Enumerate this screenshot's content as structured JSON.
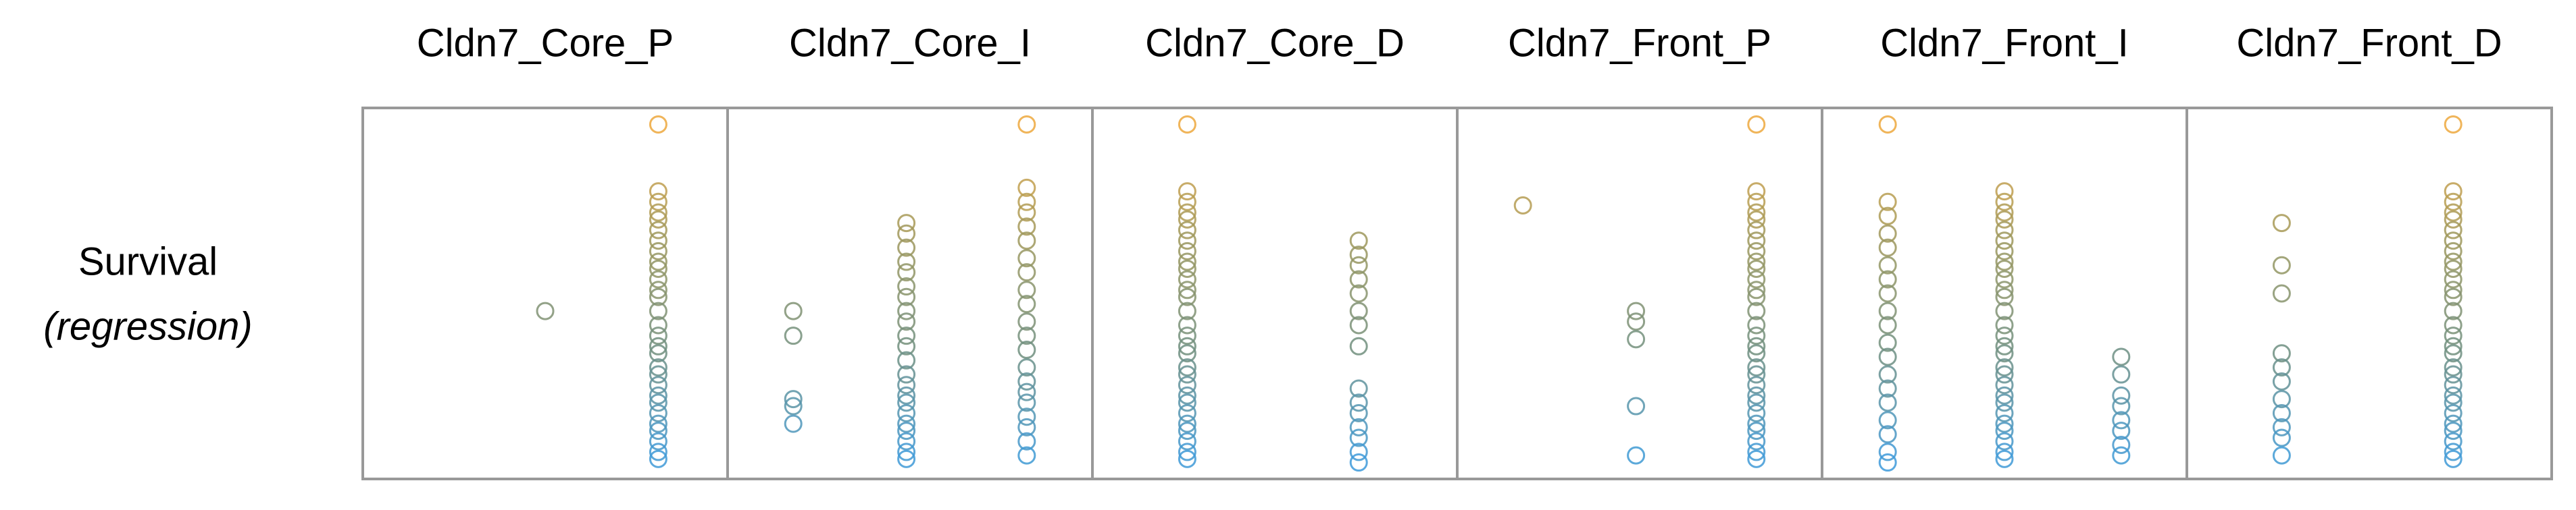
{
  "row_label": {
    "text": "Survival",
    "subtext": "(regression)"
  },
  "colormap": [
    "#3a9be0",
    "#6f8f80",
    "#a0985a",
    "#f2a93b"
  ],
  "chart_data": [
    {
      "type": "scatter",
      "title": "Cldn7_Core_P",
      "xlim": [
        0,
        1
      ],
      "ylim": [
        0,
        1
      ],
      "x": [
        0.5,
        0.81,
        0.81,
        0.81,
        0.81,
        0.81,
        0.81,
        0.81,
        0.81,
        0.81,
        0.81,
        0.81,
        0.81,
        0.81,
        0.81,
        0.81,
        0.81,
        0.81,
        0.81,
        0.81,
        0.81,
        0.81,
        0.81,
        0.81,
        0.81,
        0.81,
        0.81,
        0.81,
        0.81,
        0.81
      ],
      "y": [
        0.45,
        0.98,
        0.79,
        0.76,
        0.73,
        0.71,
        0.68,
        0.65,
        0.62,
        0.59,
        0.57,
        0.54,
        0.51,
        0.49,
        0.45,
        0.41,
        0.38,
        0.35,
        0.33,
        0.29,
        0.27,
        0.24,
        0.21,
        0.19,
        0.16,
        0.13,
        0.11,
        0.08,
        0.05,
        0.03
      ]
    },
    {
      "type": "scatter",
      "title": "Cldn7_Core_I",
      "xlim": [
        0,
        1
      ],
      "ylim": [
        0,
        1
      ],
      "x": [
        0.18,
        0.18,
        0.18,
        0.18,
        0.18,
        0.49,
        0.49,
        0.49,
        0.49,
        0.49,
        0.49,
        0.49,
        0.49,
        0.49,
        0.49,
        0.49,
        0.49,
        0.49,
        0.49,
        0.49,
        0.49,
        0.49,
        0.49,
        0.49,
        0.49,
        0.49,
        0.49,
        0.82,
        0.82,
        0.82,
        0.82,
        0.82,
        0.82,
        0.82,
        0.82,
        0.82,
        0.82,
        0.82,
        0.82,
        0.82,
        0.82,
        0.82,
        0.82,
        0.82,
        0.82,
        0.82,
        0.82,
        0.82
      ],
      "y": [
        0.45,
        0.38,
        0.2,
        0.18,
        0.13,
        0.7,
        0.67,
        0.63,
        0.59,
        0.56,
        0.52,
        0.49,
        0.45,
        0.42,
        0.38,
        0.35,
        0.31,
        0.27,
        0.24,
        0.21,
        0.19,
        0.16,
        0.13,
        0.11,
        0.08,
        0.05,
        0.03,
        0.98,
        0.8,
        0.76,
        0.73,
        0.69,
        0.65,
        0.6,
        0.56,
        0.51,
        0.47,
        0.42,
        0.38,
        0.34,
        0.29,
        0.25,
        0.22,
        0.19,
        0.15,
        0.12,
        0.08,
        0.04
      ]
    },
    {
      "type": "scatter",
      "title": "Cldn7_Core_D",
      "xlim": [
        0,
        1
      ],
      "ylim": [
        0,
        1
      ],
      "x": [
        0.26,
        0.26,
        0.26,
        0.26,
        0.26,
        0.26,
        0.26,
        0.26,
        0.26,
        0.26,
        0.26,
        0.26,
        0.26,
        0.26,
        0.26,
        0.26,
        0.26,
        0.26,
        0.26,
        0.26,
        0.26,
        0.26,
        0.26,
        0.26,
        0.26,
        0.26,
        0.26,
        0.26,
        0.26,
        0.73,
        0.73,
        0.73,
        0.73,
        0.73,
        0.73,
        0.73,
        0.73,
        0.73,
        0.73,
        0.73,
        0.73,
        0.73,
        0.73,
        0.73
      ],
      "y": [
        0.98,
        0.79,
        0.76,
        0.73,
        0.71,
        0.68,
        0.65,
        0.62,
        0.59,
        0.57,
        0.54,
        0.51,
        0.49,
        0.45,
        0.41,
        0.38,
        0.35,
        0.33,
        0.29,
        0.27,
        0.24,
        0.21,
        0.19,
        0.16,
        0.13,
        0.11,
        0.08,
        0.05,
        0.03,
        0.65,
        0.61,
        0.58,
        0.54,
        0.5,
        0.45,
        0.41,
        0.35,
        0.23,
        0.19,
        0.16,
        0.12,
        0.09,
        0.05,
        0.02
      ]
    },
    {
      "type": "scatter",
      "title": "Cldn7_Front_P",
      "xlim": [
        0,
        1
      ],
      "ylim": [
        0,
        1
      ],
      "x": [
        0.18,
        0.49,
        0.49,
        0.49,
        0.49,
        0.49,
        0.82,
        0.82,
        0.82,
        0.82,
        0.82,
        0.82,
        0.82,
        0.82,
        0.82,
        0.82,
        0.82,
        0.82,
        0.82,
        0.82,
        0.82,
        0.82,
        0.82,
        0.82,
        0.82,
        0.82,
        0.82,
        0.82,
        0.82,
        0.82,
        0.82,
        0.82,
        0.82,
        0.82,
        0.82
      ],
      "y": [
        0.75,
        0.45,
        0.42,
        0.37,
        0.18,
        0.04,
        0.98,
        0.79,
        0.76,
        0.73,
        0.71,
        0.68,
        0.65,
        0.62,
        0.59,
        0.57,
        0.54,
        0.51,
        0.49,
        0.45,
        0.41,
        0.38,
        0.35,
        0.33,
        0.29,
        0.27,
        0.24,
        0.21,
        0.19,
        0.16,
        0.13,
        0.11,
        0.08,
        0.05,
        0.03
      ]
    },
    {
      "type": "scatter",
      "title": "Cldn7_Front_I",
      "xlim": [
        0,
        1
      ],
      "ylim": [
        0,
        1
      ],
      "x": [
        0.18,
        0.18,
        0.18,
        0.18,
        0.18,
        0.18,
        0.18,
        0.18,
        0.18,
        0.18,
        0.18,
        0.18,
        0.18,
        0.18,
        0.18,
        0.18,
        0.18,
        0.18,
        0.18,
        0.5,
        0.5,
        0.5,
        0.5,
        0.5,
        0.5,
        0.5,
        0.5,
        0.5,
        0.5,
        0.5,
        0.5,
        0.5,
        0.5,
        0.5,
        0.5,
        0.5,
        0.5,
        0.5,
        0.5,
        0.5,
        0.5,
        0.5,
        0.5,
        0.5,
        0.5,
        0.5,
        0.5,
        0.82,
        0.82,
        0.82,
        0.82,
        0.82,
        0.82,
        0.82,
        0.82
      ],
      "y": [
        0.98,
        0.76,
        0.72,
        0.67,
        0.63,
        0.58,
        0.54,
        0.5,
        0.45,
        0.41,
        0.36,
        0.32,
        0.27,
        0.23,
        0.19,
        0.14,
        0.1,
        0.05,
        0.02,
        0.79,
        0.76,
        0.73,
        0.71,
        0.68,
        0.65,
        0.62,
        0.59,
        0.57,
        0.54,
        0.51,
        0.49,
        0.45,
        0.41,
        0.38,
        0.35,
        0.33,
        0.29,
        0.27,
        0.24,
        0.21,
        0.19,
        0.16,
        0.13,
        0.11,
        0.08,
        0.05,
        0.03,
        0.32,
        0.27,
        0.21,
        0.18,
        0.14,
        0.11,
        0.07,
        0.04
      ]
    },
    {
      "type": "scatter",
      "title": "Cldn7_Front_D",
      "xlim": [
        0,
        1
      ],
      "ylim": [
        0,
        1
      ],
      "x": [
        0.26,
        0.26,
        0.26,
        0.26,
        0.26,
        0.26,
        0.26,
        0.26,
        0.26,
        0.26,
        0.26,
        0.73,
        0.73,
        0.73,
        0.73,
        0.73,
        0.73,
        0.73,
        0.73,
        0.73,
        0.73,
        0.73,
        0.73,
        0.73,
        0.73,
        0.73,
        0.73,
        0.73,
        0.73,
        0.73,
        0.73,
        0.73,
        0.73,
        0.73,
        0.73,
        0.73,
        0.73,
        0.73,
        0.73,
        0.73
      ],
      "y": [
        0.7,
        0.58,
        0.5,
        0.33,
        0.29,
        0.25,
        0.2,
        0.16,
        0.12,
        0.09,
        0.04,
        0.98,
        0.79,
        0.76,
        0.73,
        0.71,
        0.68,
        0.65,
        0.62,
        0.59,
        0.57,
        0.54,
        0.51,
        0.49,
        0.45,
        0.41,
        0.38,
        0.35,
        0.33,
        0.29,
        0.27,
        0.24,
        0.21,
        0.19,
        0.16,
        0.13,
        0.11,
        0.08,
        0.05,
        0.03
      ]
    }
  ]
}
